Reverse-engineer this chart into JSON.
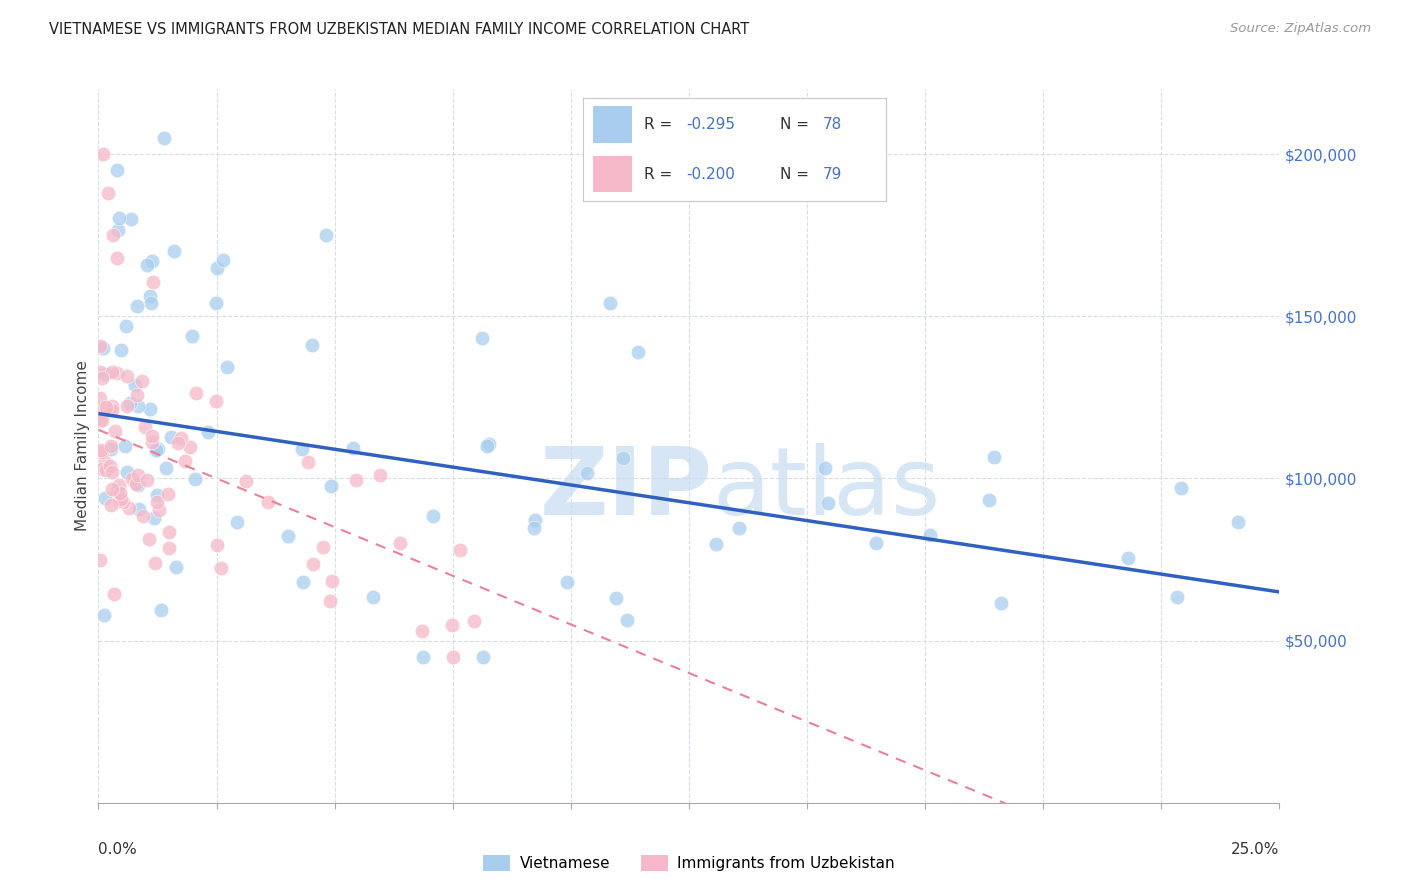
{
  "title": "VIETNAMESE VS IMMIGRANTS FROM UZBEKISTAN MEDIAN FAMILY INCOME CORRELATION CHART",
  "source": "Source: ZipAtlas.com",
  "ylabel": "Median Family Income",
  "xmin": 0.0,
  "xmax": 0.25,
  "ymin": 0,
  "ymax": 220000,
  "yticks": [
    50000,
    100000,
    150000,
    200000
  ],
  "ytick_labels": [
    "$50,000",
    "$100,000",
    "$150,000",
    "$200,000"
  ],
  "watermark_zip": "ZIP",
  "watermark_atlas": "atlas",
  "legend_r1": "R = -0.295",
  "legend_n1": "N = 78",
  "legend_r2": "R = -0.200",
  "legend_n2": "N = 79",
  "color_vietnamese": "#A8CDEE",
  "color_uzbekistan": "#F5B8C8",
  "color_blue_text": "#4472C4",
  "regression_color_vietnamese": "#3060C0",
  "regression_color_uzbekistan": "#E88098",
  "background_color": "#FFFFFF",
  "grid_color": "#D8DCE8",
  "viet_intercept": 120000,
  "viet_slope": -220000,
  "uzb_intercept": 115000,
  "uzb_slope": -600000,
  "scatter_size": 110,
  "scatter_alpha": 0.75
}
